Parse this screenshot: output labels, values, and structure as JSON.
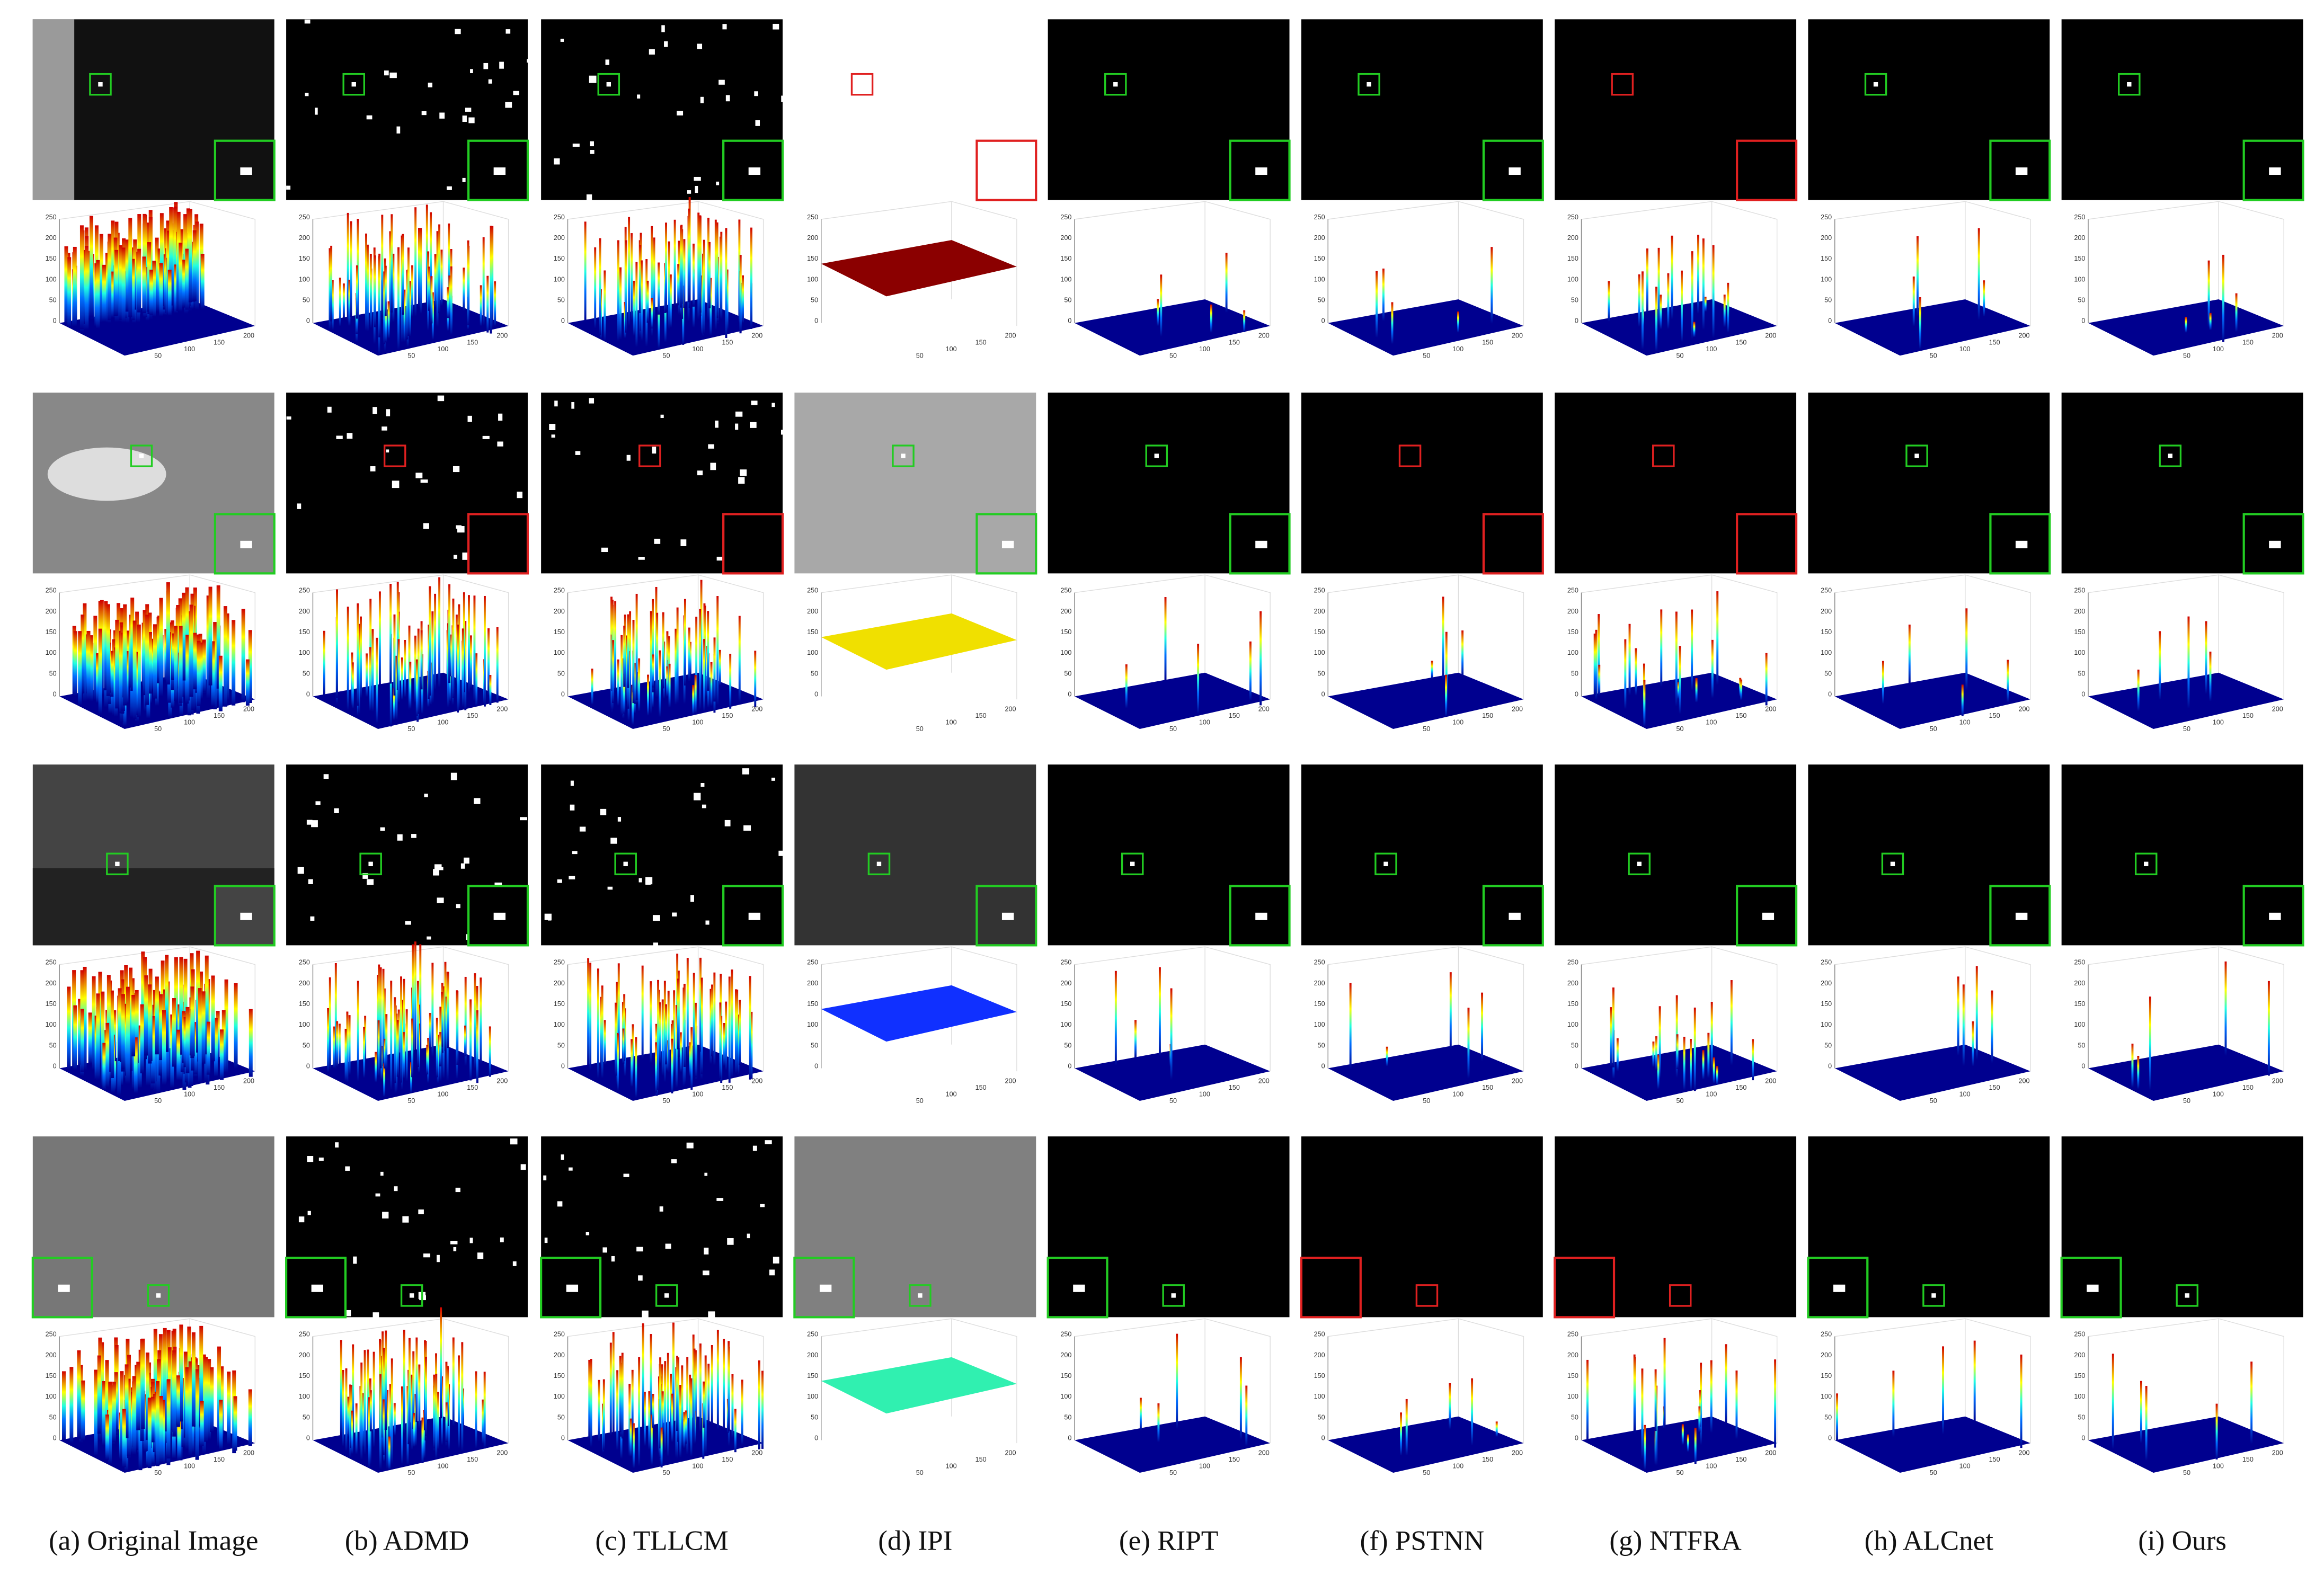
{
  "figure": {
    "captions": [
      "(a) Original Image",
      "(b) ADMD",
      "(c) TLLCM",
      "(d) IPI",
      "(e) RIPT",
      "(f) PSTNN",
      "(g) NTFRA",
      "(h) ALCnet",
      "(i) Ours"
    ],
    "z_ticks": [
      "0",
      "50",
      "100",
      "150",
      "200",
      "250"
    ],
    "x_ticks": [
      "50",
      "100",
      "150",
      "200"
    ]
  }
}
